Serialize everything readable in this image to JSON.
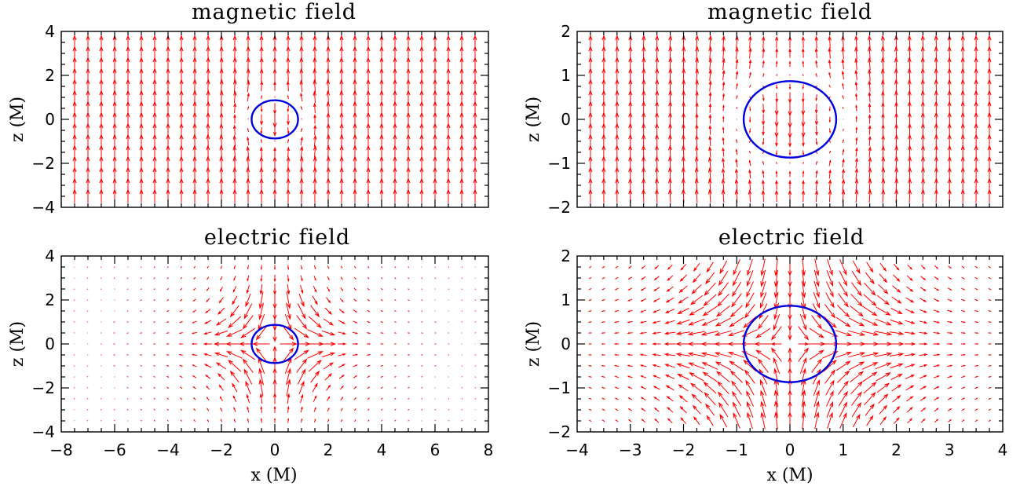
{
  "chart_data": [
    {
      "type": "vector-field",
      "title": "magnetic field",
      "xlim": [
        -8,
        8
      ],
      "ylim": [
        -4,
        4
      ],
      "xlabel": "",
      "ylabel": "z (M)",
      "xticks": [],
      "yticks": [
        "-4",
        "-2",
        "0",
        "2",
        "4"
      ],
      "field": "magnetic",
      "grid_spacing": 0.25,
      "horizon_radius": 0.87,
      "vector_color": "#ff0000",
      "horizon_color": "#0000dd"
    },
    {
      "type": "vector-field",
      "title": "magnetic field",
      "xlim": [
        -4,
        4
      ],
      "ylim": [
        -2,
        2
      ],
      "xlabel": "",
      "ylabel": "z (M)",
      "xticks": [],
      "yticks": [
        "-2",
        "-1",
        "0",
        "1",
        "2"
      ],
      "field": "magnetic",
      "grid_spacing": 0.25,
      "horizon_radius": 0.87,
      "vector_color": "#ff0000",
      "horizon_color": "#0000dd"
    },
    {
      "type": "vector-field",
      "title": "electric field",
      "xlim": [
        -8,
        8
      ],
      "ylim": [
        -4,
        4
      ],
      "xlabel": "x (M)",
      "ylabel": "z (M)",
      "xticks": [
        "-8",
        "-6",
        "-4",
        "-2",
        "0",
        "2",
        "4",
        "6",
        "8"
      ],
      "yticks": [
        "-4",
        "-2",
        "0",
        "2",
        "4"
      ],
      "field": "electric",
      "grid_spacing": 0.25,
      "horizon_radius": 0.87,
      "vector_color": "#ff0000",
      "horizon_color": "#0000dd"
    },
    {
      "type": "vector-field",
      "title": "electric field",
      "xlim": [
        -4,
        4
      ],
      "ylim": [
        -2,
        2
      ],
      "xlabel": "x (M)",
      "ylabel": "z (M)",
      "xticks": [
        "-4",
        "-3",
        "-2",
        "-1",
        "0",
        "1",
        "2",
        "3",
        "4"
      ],
      "yticks": [
        "-2",
        "-1",
        "0",
        "1",
        "2"
      ],
      "field": "electric",
      "grid_spacing": 0.25,
      "horizon_radius": 0.87,
      "vector_color": "#ff0000",
      "horizon_color": "#0000dd"
    }
  ]
}
